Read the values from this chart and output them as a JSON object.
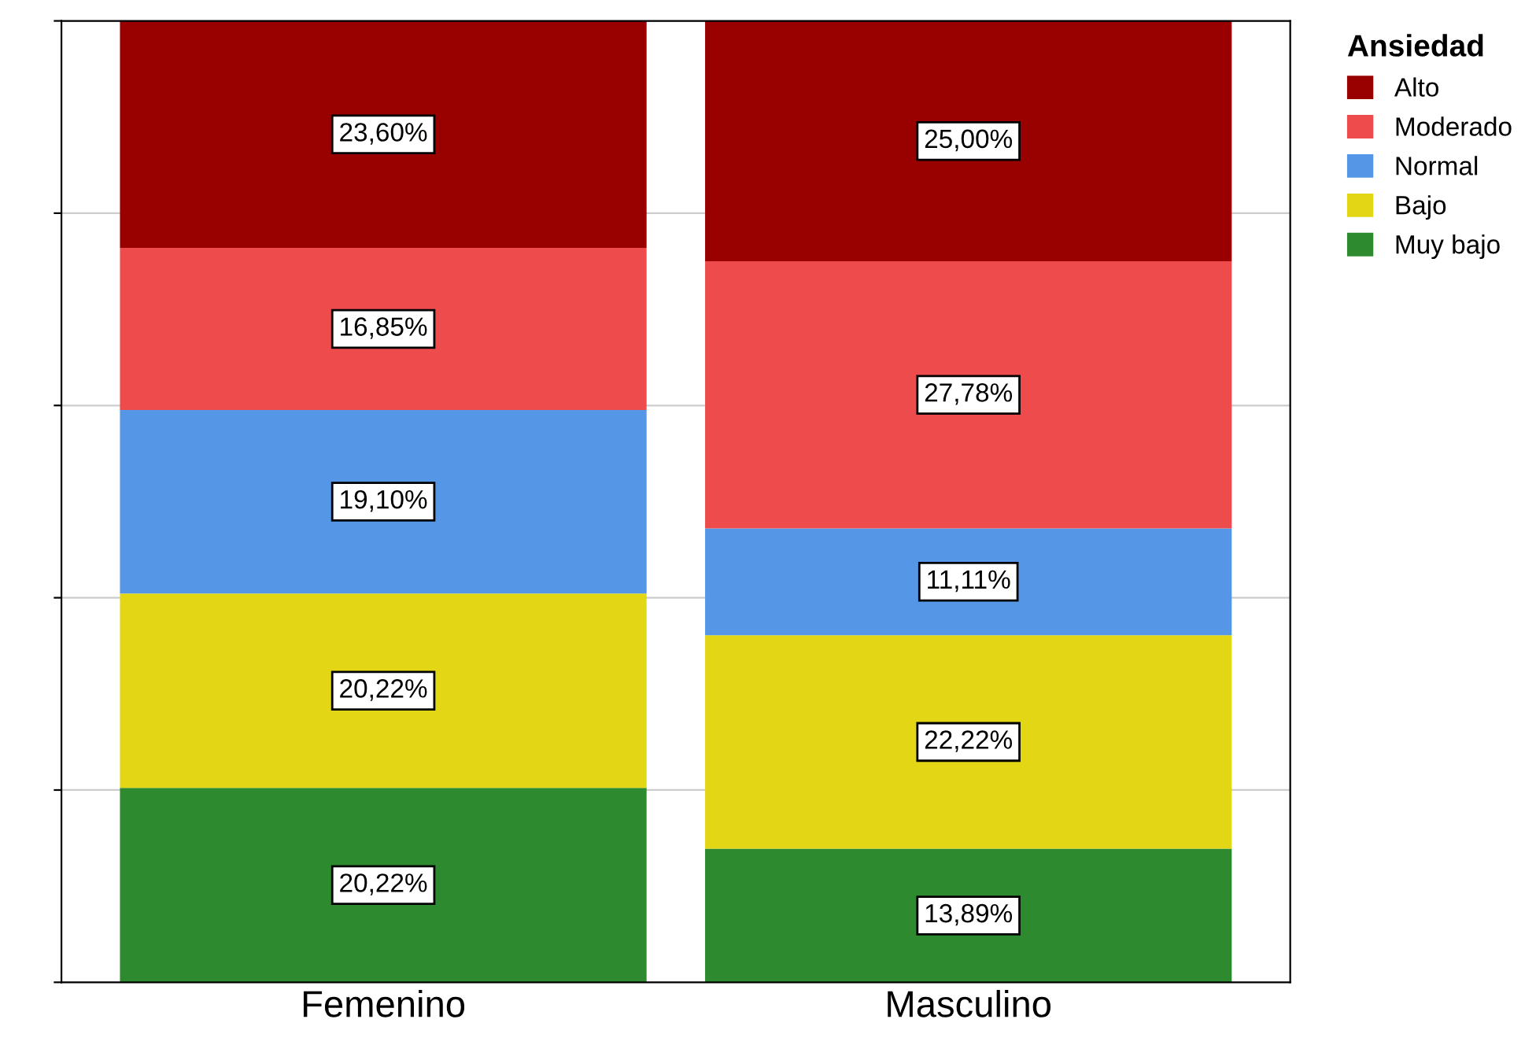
{
  "chart_data": {
    "type": "bar",
    "stacked": true,
    "categories": [
      "Femenino",
      "Masculino"
    ],
    "legend_title": "Ansiedad",
    "legend": "top right",
    "grid": "y",
    "tick_labels": "x",
    "ylim": [
      0,
      100
    ],
    "yticks": [
      {
        "value": 0,
        "label": null
      },
      {
        "value": 20,
        "label": null
      },
      {
        "value": 40,
        "label": null
      },
      {
        "value": 60,
        "label": null
      },
      {
        "value": 80,
        "label": null
      },
      {
        "value": 100,
        "label": null
      }
    ],
    "series": [
      {
        "name": "Muy bajo",
        "color": "#2e8a2e",
        "values": [
          20.22,
          13.89
        ],
        "value_labels": [
          "20,22%",
          "13,89%"
        ]
      },
      {
        "name": "Bajo",
        "color": "#e3d614",
        "values": [
          20.22,
          22.22
        ],
        "value_labels": [
          "20,22%",
          "22,22%"
        ]
      },
      {
        "name": "Normal",
        "color": "#5596e6",
        "values": [
          19.1,
          11.11
        ],
        "value_labels": [
          "19,10%",
          "11,11%"
        ]
      },
      {
        "name": "Moderado",
        "color": "#ee4c4c",
        "values": [
          16.85,
          27.78
        ],
        "value_labels": [
          "16,85%",
          "27,78%"
        ]
      },
      {
        "name": "Alto",
        "color": "#990000",
        "values": [
          23.6,
          25.0
        ],
        "value_labels": [
          "23,60%",
          "25,00%"
        ]
      }
    ]
  }
}
